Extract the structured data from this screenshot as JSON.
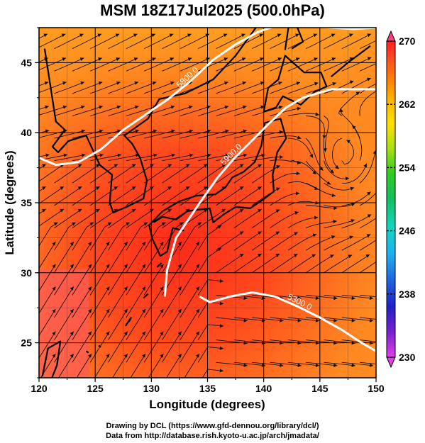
{
  "title": "MSM 18Z17Jul2025 (500.0hPa)",
  "credits": [
    "Drawing by DCL (https://www.gfd-dennou.org/library/dcl/)",
    "Data from http://database.rish.kyoto-u.ac.jp/arch/jmadata/"
  ],
  "axes": {
    "xlabel": "Longitude (degrees)",
    "ylabel": "Latitude  (degrees)",
    "xlim": [
      120,
      150
    ],
    "ylim": [
      22.5,
      47.5
    ],
    "xticks": [
      120,
      125,
      130,
      135,
      140,
      145,
      150
    ],
    "yticks": [
      25,
      30,
      35,
      40,
      45
    ]
  },
  "colorbar": {
    "min": 230,
    "max": 270,
    "labels": [
      270,
      262,
      254,
      246,
      238,
      230
    ],
    "colors": [
      "#ff3d7a",
      "#e040e8",
      "#7a20d0",
      "#2020c8",
      "#1e6be0",
      "#1ab4f0",
      "#10d8c0",
      "#10c060",
      "#2ecc20",
      "#a8e010",
      "#ffe000",
      "#ffb000",
      "#ff8000",
      "#ff5020",
      "#ff2020",
      "#ff5050"
    ]
  },
  "contours": [
    {
      "label": "5800.0",
      "points": [
        [
          120,
          38.2
        ],
        [
          121.5,
          37.7
        ],
        [
          123.5,
          37.9
        ],
        [
          125.5,
          38.8
        ],
        [
          127.5,
          40.2
        ],
        [
          129.5,
          41.3
        ],
        [
          131.5,
          42.4
        ],
        [
          133.5,
          43.7
        ],
        [
          135.5,
          45.2
        ],
        [
          137.5,
          46.3
        ],
        [
          139.5,
          47.2
        ],
        [
          141,
          47.6
        ],
        [
          144,
          47.6
        ],
        [
          148,
          47.4
        ],
        [
          150,
          47.5
        ]
      ]
    },
    {
      "label": "5900.0",
      "points": [
        [
          131.2,
          28.3
        ],
        [
          131.4,
          30.2
        ],
        [
          132.2,
          32.5
        ],
        [
          133.3,
          33.8
        ],
        [
          134.4,
          35.1
        ],
        [
          135.9,
          36.8
        ],
        [
          137.4,
          38.2
        ],
        [
          138.9,
          39.4
        ],
        [
          140.4,
          40.6
        ],
        [
          142.0,
          41.8
        ],
        [
          143.5,
          42.5
        ],
        [
          146.0,
          43.1
        ],
        [
          150,
          43.1
        ]
      ]
    },
    {
      "label": "5300.0",
      "points": [
        [
          134.3,
          28.3
        ],
        [
          135.2,
          27.9
        ],
        [
          137.0,
          28.3
        ],
        [
          139.0,
          28.6
        ],
        [
          141.0,
          28.3
        ],
        [
          143.0,
          27.6
        ],
        [
          145.0,
          26.8
        ],
        [
          147.0,
          25.9
        ],
        [
          148.5,
          25.1
        ],
        [
          150,
          24.4
        ]
      ]
    }
  ]
}
